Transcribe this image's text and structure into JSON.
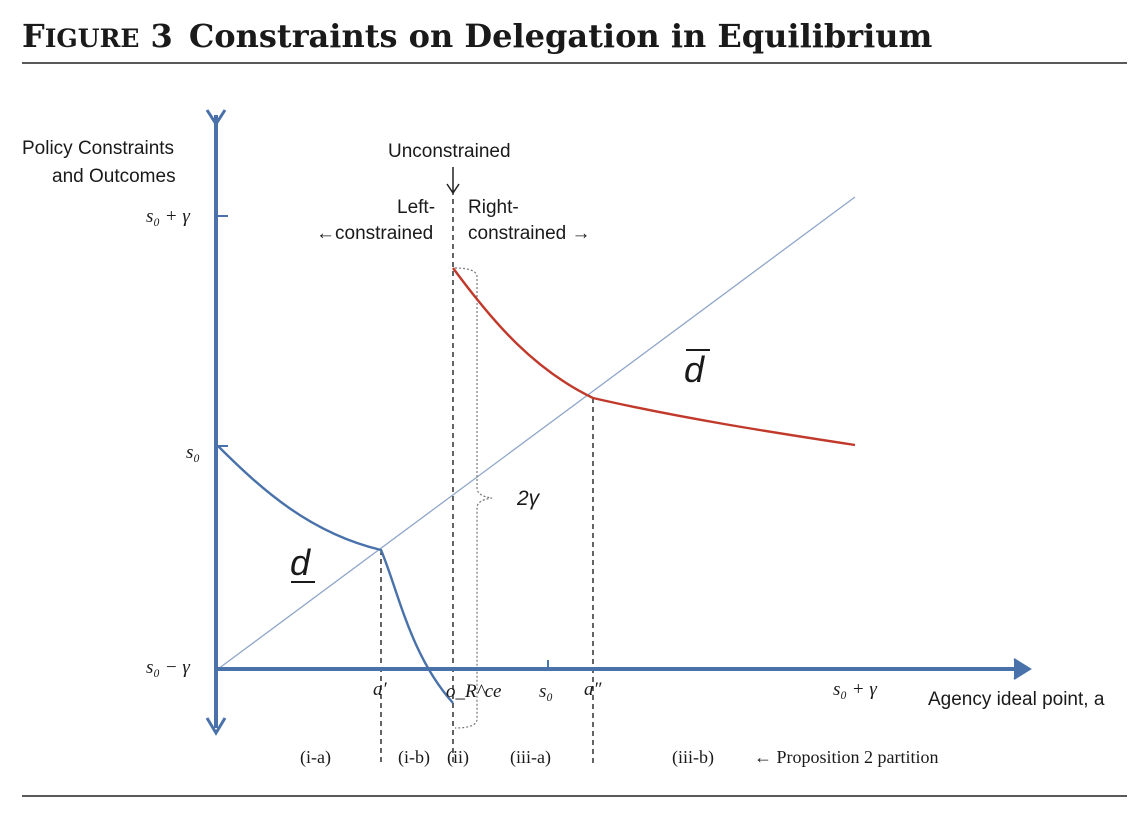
{
  "header": {
    "figure_label": "Figure 3",
    "title": "Constraints on Delegation in Equilibrium"
  },
  "colors": {
    "axis": "#4a72aa",
    "lower_bound": "#4a72aa",
    "upper_bound": "#c0392b",
    "diagonal": "#8fa6c8"
  },
  "chart_data": {
    "type": "line",
    "xlabel": "Agency ideal point, a",
    "ylabel": [
      "Policy Constraints",
      "and Outcomes"
    ],
    "x_ticks": [
      "a′",
      "o_R^ce",
      "s₀",
      "a″",
      "s₀ + γ"
    ],
    "y_ticks": [
      "s₀ + γ",
      "s₀",
      "s₀ − γ"
    ],
    "series": [
      {
        "name": "d (lower bound)",
        "label_text": "d",
        "color": "#4a72aa",
        "style": "solid"
      },
      {
        "name": "d̄ (upper bound)",
        "label_text": "d",
        "color": "#c0392b",
        "style": "solid"
      },
      {
        "name": "45-degree line",
        "color": "#8fa6c8",
        "style": "thin"
      }
    ],
    "annotations": {
      "unconstrained": "Unconstrained",
      "left_line1": "Left-",
      "left_line2": "←constrained",
      "right_line1": "Right-",
      "right_line2": "constrained →",
      "width_label": "2γ"
    },
    "partition": {
      "regions": [
        "(i-a)",
        "(i-b)",
        "(ii)",
        "(iii-a)",
        "(iii-b)"
      ],
      "note": "← Proposition 2 partition"
    }
  }
}
